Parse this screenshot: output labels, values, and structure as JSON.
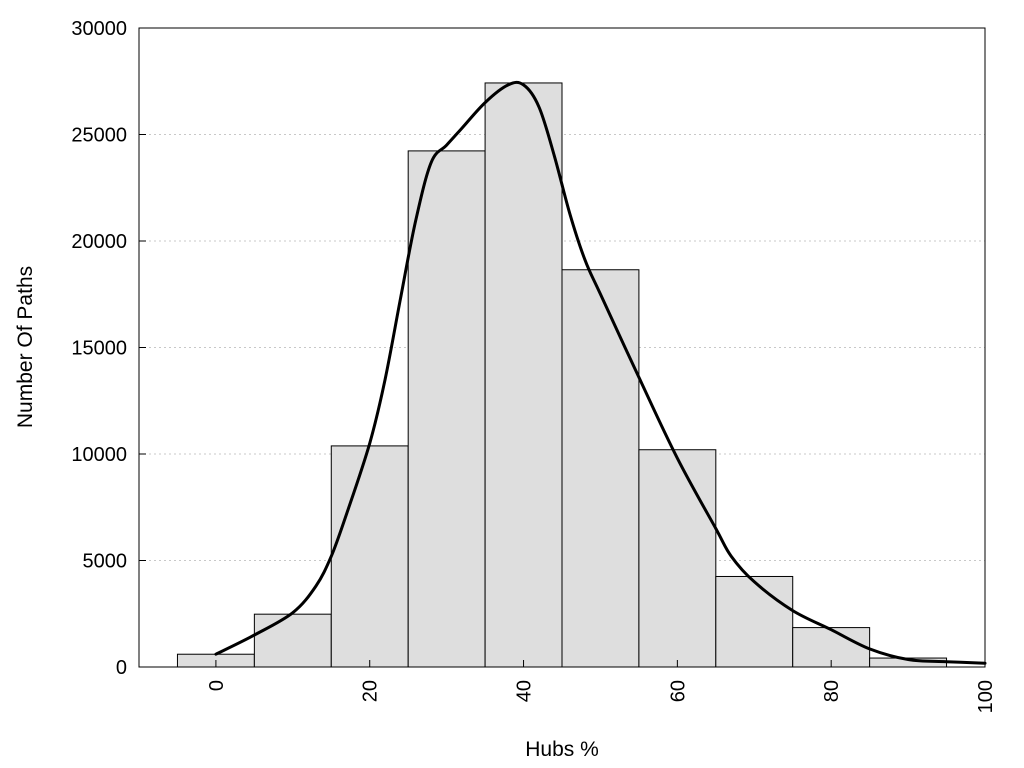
{
  "chart_data": {
    "type": "bar",
    "title": "",
    "xlabel": "Hubs %",
    "ylabel": "Number Of Paths",
    "xlim": [
      -10,
      100
    ],
    "ylim": [
      0,
      30000
    ],
    "x_ticks": [
      "0",
      "20",
      "40",
      "60",
      "80",
      "100"
    ],
    "x_tick_values": [
      0,
      20,
      40,
      60,
      80,
      100
    ],
    "y_ticks": [
      "0",
      "5000",
      "10000",
      "15000",
      "20000",
      "25000",
      "30000"
    ],
    "y_tick_values": [
      0,
      5000,
      10000,
      15000,
      20000,
      25000,
      30000
    ],
    "grid": "horizontal-dotted",
    "legend": "none",
    "bars": [
      {
        "x0": -5,
        "x1": 5,
        "value": 600
      },
      {
        "x0": 5,
        "x1": 15,
        "value": 2480
      },
      {
        "x0": 15,
        "x1": 25,
        "value": 10380
      },
      {
        "x0": 25,
        "x1": 35,
        "value": 24230
      },
      {
        "x0": 35,
        "x1": 45,
        "value": 27420
      },
      {
        "x0": 45,
        "x1": 55,
        "value": 18650
      },
      {
        "x0": 55,
        "x1": 65,
        "value": 10200
      },
      {
        "x0": 65,
        "x1": 75,
        "value": 4250
      },
      {
        "x0": 75,
        "x1": 85,
        "value": 1850
      },
      {
        "x0": 85,
        "x1": 95,
        "value": 420
      }
    ],
    "density_curve": {
      "x": [
        0,
        5,
        10,
        13,
        15,
        17,
        20,
        22,
        24,
        26,
        28,
        30,
        32,
        35,
        38,
        40,
        42,
        44,
        46,
        48,
        50,
        55,
        60,
        65,
        67,
        70,
        75,
        80,
        85,
        90,
        95,
        100
      ],
      "y": [
        600,
        1500,
        2550,
        3800,
        5200,
        7200,
        10500,
        13500,
        17300,
        21000,
        23700,
        24500,
        25300,
        26500,
        27330,
        27330,
        26300,
        24000,
        21300,
        19100,
        17500,
        13600,
        9800,
        6500,
        5200,
        4000,
        2650,
        1750,
        850,
        350,
        250,
        180
      ]
    },
    "colors": {
      "bar_fill": "#dedede",
      "bar_stroke": "#000000",
      "curve": "#000000",
      "grid": "#c8c8c8"
    }
  }
}
